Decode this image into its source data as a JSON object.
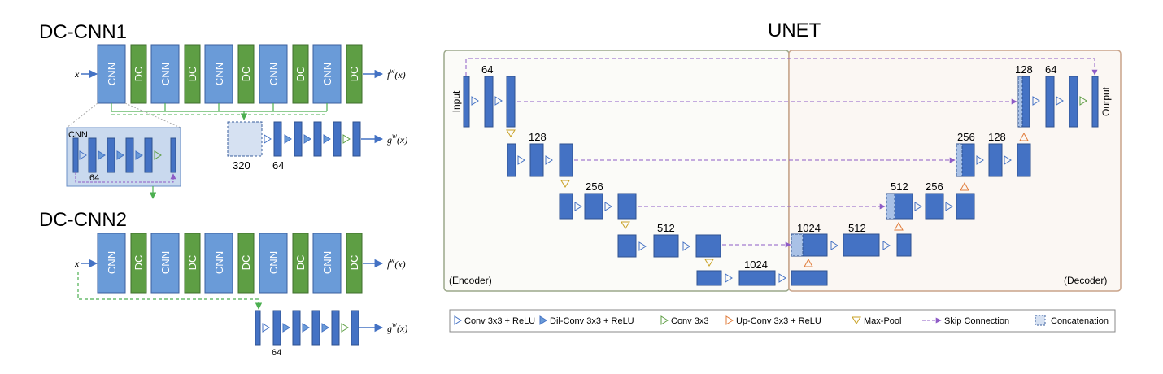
{
  "dccnn1": {
    "title": "DC-CNN1",
    "blocks": [
      "CNN",
      "DC",
      "CNN",
      "DC",
      "CNN",
      "DC",
      "CNN",
      "DC",
      "CNN",
      "DC"
    ],
    "input": "x",
    "out_f": "f",
    "out_f_sup": "w",
    "out_f_arg": "(x)",
    "out_g": "g",
    "out_g_sup": "w",
    "out_g_arg": "(x)",
    "concat_label": "320",
    "layer_label": "64"
  },
  "cnn_detail": {
    "title": "CNN",
    "width_label": "64"
  },
  "dccnn2": {
    "title": "DC-CNN2",
    "blocks": [
      "CNN",
      "DC",
      "CNN",
      "DC",
      "CNN",
      "DC",
      "CNN",
      "DC",
      "CNN",
      "DC"
    ],
    "input": "x",
    "out_f": "f",
    "out_f_sup": "w",
    "out_f_arg": "(x)",
    "out_g": "g",
    "out_g_sup": "w",
    "out_g_arg": "(x)",
    "layer_label": "64"
  },
  "unet": {
    "title": "UNET",
    "input_label": "Input",
    "output_label": "Output",
    "encoder_label": "(Encoder)",
    "decoder_label": "(Decoder)",
    "enc": {
      "l1": "64",
      "l2": "128",
      "l3": "256",
      "l4": "512",
      "bottleneck": "1024"
    },
    "dec": {
      "l4a": "1024",
      "l4b": "512",
      "l3a": "512",
      "l3b": "256",
      "l2a": "256",
      "l2b": "128",
      "l1a": "128",
      "l1b": "64"
    }
  },
  "legend": {
    "items": [
      {
        "label": "Conv 3x3 + ReLU",
        "icon": "triangle-outline-blue"
      },
      {
        "label": "Dil-Conv 3x3 + ReLU",
        "icon": "triangle-filled-blue"
      },
      {
        "label": "Conv 3x3",
        "icon": "triangle-outline-green"
      },
      {
        "label": "Up-Conv 3x3 + ReLU",
        "icon": "triangle-outline-orange"
      },
      {
        "label": "Max-Pool",
        "icon": "triangle-down-gold"
      },
      {
        "label": "Skip Connection",
        "icon": "dashed-arrow-purple"
      },
      {
        "label": "Concatenation",
        "icon": "dashed-box-blue"
      }
    ]
  },
  "colors": {
    "blue_block": "#4472C4",
    "blue_light_block": "#6A9BD8",
    "green_block": "#5E9E44",
    "encoder_border": "#9BA88A",
    "decoder_border": "#C9A48A",
    "decoder_fill": "#FBF7F3",
    "skip": "#8E5BC6",
    "green_line": "#4CAF50"
  }
}
